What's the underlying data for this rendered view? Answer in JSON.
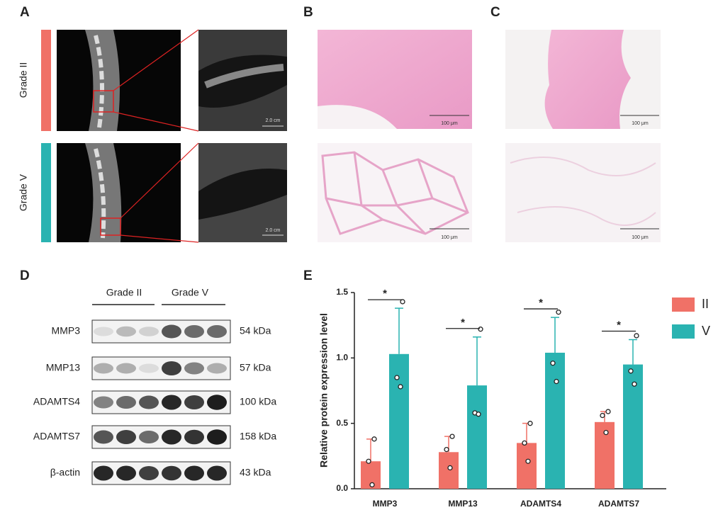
{
  "panels": {
    "labels": [
      "A",
      "B",
      "C",
      "D",
      "E"
    ],
    "a": {
      "rows": [
        "Grade II",
        "Grade V"
      ],
      "scale": [
        "2.0 cm",
        "2.0 cm"
      ]
    },
    "b": {
      "scale": [
        "100 μm",
        "100 μm"
      ]
    },
    "c": {
      "scale": [
        "100 μm",
        "100 μm"
      ]
    },
    "d": {
      "groups": [
        "Grade II",
        "Grade V"
      ],
      "rows": [
        {
          "name": "MMP3",
          "size": "54 kDa"
        },
        {
          "name": "MMP13",
          "size": "57 kDa"
        },
        {
          "name": "ADAMTS4",
          "size": "100 kDa"
        },
        {
          "name": "ADAMTS7",
          "size": "158 kDa"
        },
        {
          "name": "β-actin",
          "size": "43 kDa"
        }
      ]
    }
  },
  "chart_data": {
    "type": "bar",
    "y_label": "Relative protein expression level",
    "categories": [
      "MMP3",
      "MMP13",
      "ADAMTS4",
      "ADAMTS7"
    ],
    "series": [
      {
        "name": "II",
        "color": "#f07167",
        "values": [
          0.21,
          0.28,
          0.35,
          0.51
        ],
        "errors": [
          0.17,
          0.12,
          0.15,
          0.08
        ],
        "points": [
          [
            0.38,
            0.21,
            0.03
          ],
          [
            0.4,
            0.3,
            0.16
          ],
          [
            0.5,
            0.35,
            0.21
          ],
          [
            0.59,
            0.56,
            0.43
          ]
        ]
      },
      {
        "name": "V",
        "color": "#2ab3b1",
        "values": [
          1.03,
          0.79,
          1.04,
          0.95
        ],
        "errors": [
          0.35,
          0.37,
          0.27,
          0.19
        ],
        "points": [
          [
            1.43,
            0.85,
            0.78
          ],
          [
            1.22,
            0.58,
            0.57
          ],
          [
            1.35,
            0.96,
            0.82
          ],
          [
            1.17,
            0.9,
            0.8
          ]
        ]
      }
    ],
    "significance": [
      "*",
      "*",
      "*",
      "*"
    ],
    "ylim": [
      0,
      1.5
    ],
    "yticks": [
      {
        "value": 0,
        "label": "0.0"
      },
      {
        "value": 0.5,
        "label": "0.5"
      },
      {
        "value": 1,
        "label": "1.0"
      },
      {
        "value": 1.5,
        "label": "1.5"
      }
    ],
    "legend": "right"
  }
}
